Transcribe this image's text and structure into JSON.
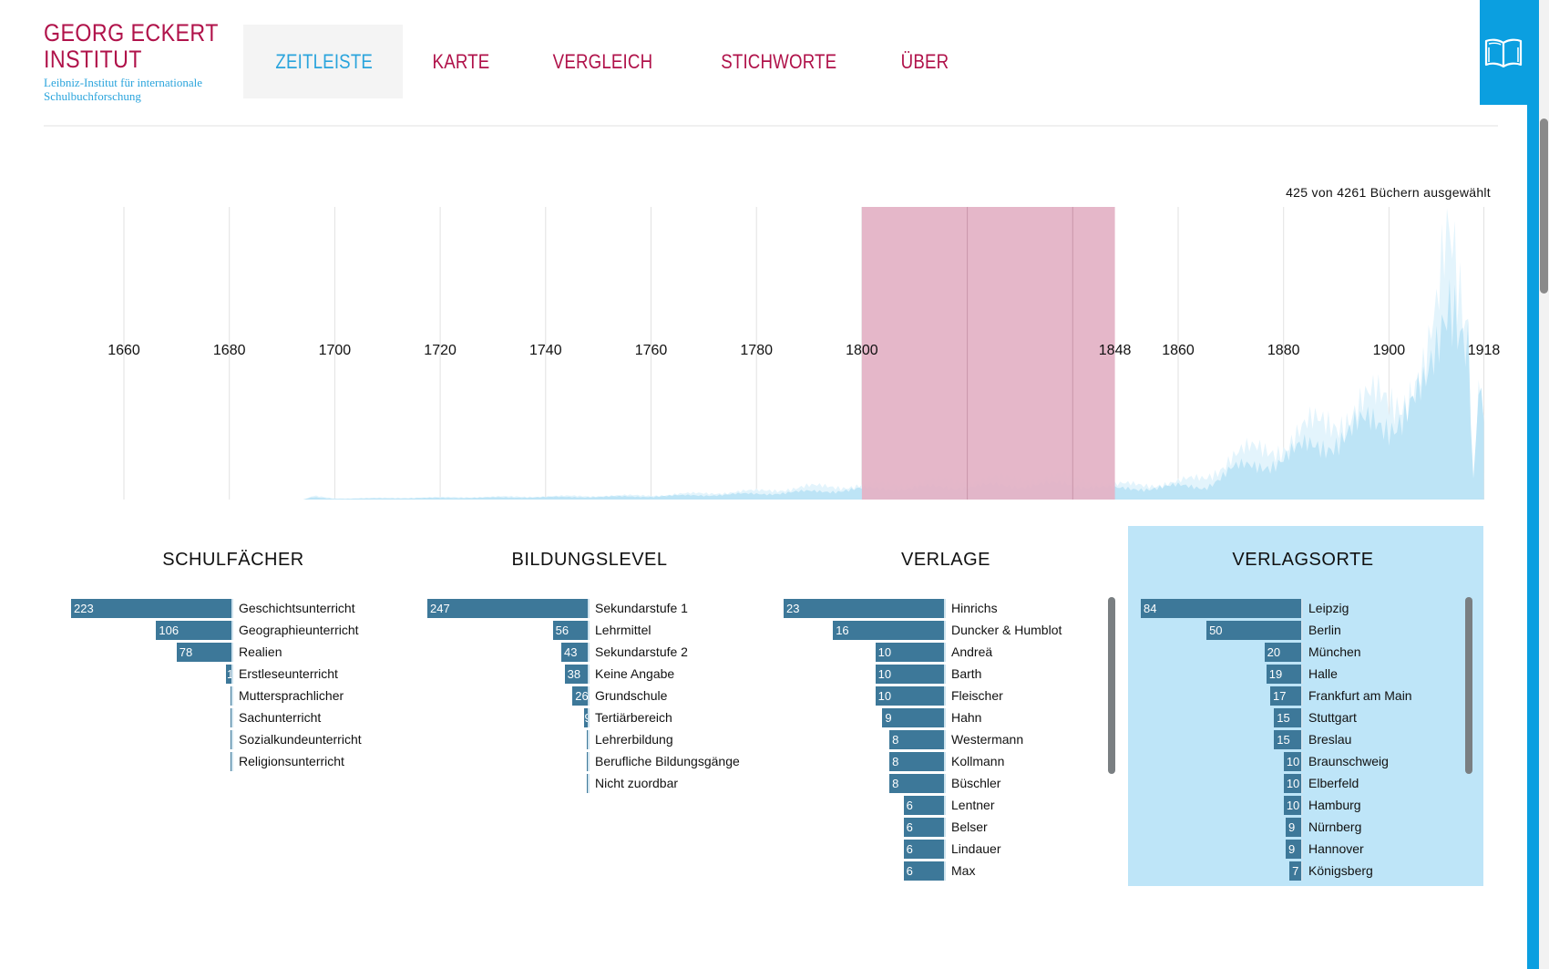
{
  "logo": {
    "line1": "GEORG ECKERT",
    "line2": "INSTITUT",
    "subtitle1": "Leibniz-Institut für internationale",
    "subtitle2": "Schulbuchforschung",
    "color": "#b0124a"
  },
  "nav": {
    "items": [
      {
        "label": "ZEITLEISTE",
        "active": true
      },
      {
        "label": "KARTE"
      },
      {
        "label": "VERGLEICH"
      },
      {
        "label": "STICHWORTE"
      },
      {
        "label": "ÜBER"
      }
    ]
  },
  "book_button": {
    "icon": "open-book-icon"
  },
  "timeline": {
    "selection_text": "425 von 4261 Büchern ausgewählt",
    "year_labels": [
      "1660",
      "1680",
      "1700",
      "1720",
      "1740",
      "1760",
      "1780",
      "1800",
      "1860",
      "1880",
      "1900",
      "1918"
    ],
    "selection": {
      "from": "1800",
      "to": "1848"
    },
    "selection_color": "#e4b3c6",
    "area_colors": {
      "total": "#e3f4fc",
      "selected": "#bde4f6"
    },
    "density_relative": [
      [
        1650,
        0,
        0
      ],
      [
        1694,
        0,
        0
      ],
      [
        1696,
        0.012,
        0.008
      ],
      [
        1700,
        0.004,
        0.003
      ],
      [
        1720,
        0.008,
        0.006
      ],
      [
        1760,
        0.015,
        0.012
      ],
      [
        1780,
        0.03,
        0.022
      ],
      [
        1790,
        0.045,
        0.03
      ],
      [
        1800,
        0.05,
        0.04
      ],
      [
        1820,
        0.07,
        0.05
      ],
      [
        1840,
        0.08,
        0.06
      ],
      [
        1848,
        0.05,
        0.04
      ],
      [
        1860,
        0.06,
        0.05
      ],
      [
        1865,
        0.08,
        0.05
      ],
      [
        1870,
        0.15,
        0.11
      ],
      [
        1880,
        0.2,
        0.16
      ],
      [
        1890,
        0.3,
        0.24
      ],
      [
        1900,
        0.36,
        0.31
      ],
      [
        1907,
        0.45,
        0.4
      ],
      [
        1909,
        0.6,
        0.55
      ],
      [
        1911,
        0.93,
        0.82
      ],
      [
        1912,
        1.0,
        0.9
      ],
      [
        1913,
        0.9,
        0.8
      ],
      [
        1915,
        0.72,
        0.62
      ],
      [
        1916,
        0.07,
        0.07
      ],
      [
        1917,
        0.4,
        0.38
      ],
      [
        1918,
        0.3,
        0.3
      ]
    ]
  },
  "panels": [
    {
      "title": "SCHULFÄCHER",
      "active": false,
      "scroll": false,
      "items": [
        {
          "label": "Geschichtsunterricht",
          "value": 223
        },
        {
          "label": "Geographieunterricht",
          "value": 106
        },
        {
          "label": "Realien",
          "value": 78
        },
        {
          "label": "Erstleseunterricht",
          "value": 10
        },
        {
          "label": "Muttersprachlicher",
          "value": 4
        },
        {
          "label": "Sachunterricht",
          "value": 3
        },
        {
          "label": "Sozialkundeunterricht",
          "value": 3
        },
        {
          "label": "Religionsunterricht",
          "value": 3
        }
      ]
    },
    {
      "title": "BILDUNGSLEVEL",
      "active": false,
      "scroll": false,
      "items": [
        {
          "label": "Sekundarstufe 1",
          "value": 247
        },
        {
          "label": "Lehrmittel",
          "value": 56
        },
        {
          "label": "Sekundarstufe 2",
          "value": 43
        },
        {
          "label": "Keine Angabe",
          "value": 38
        },
        {
          "label": "Grundschule",
          "value": 26
        },
        {
          "label": "Tertiärbereich",
          "value": 9
        },
        {
          "label": "Lehrerbildung",
          "value": 4
        },
        {
          "label": "Berufliche Bildungsgänge",
          "value": 3
        },
        {
          "label": "Nicht zuordbar",
          "value": 3
        }
      ]
    },
    {
      "title": "VERLAGE",
      "active": false,
      "scroll": true,
      "items": [
        {
          "label": "Hinrichs",
          "value": 23
        },
        {
          "label": "Duncker & Humblot",
          "value": 16
        },
        {
          "label": "Andreä",
          "value": 10
        },
        {
          "label": "Barth",
          "value": 10
        },
        {
          "label": "Fleischer",
          "value": 10
        },
        {
          "label": "Hahn",
          "value": 9
        },
        {
          "label": "Westermann",
          "value": 8
        },
        {
          "label": "Kollmann",
          "value": 8
        },
        {
          "label": "Büschler",
          "value": 8
        },
        {
          "label": "Lentner",
          "value": 6
        },
        {
          "label": "Belser",
          "value": 6
        },
        {
          "label": "Lindauer",
          "value": 6
        },
        {
          "label": "Max",
          "value": 6
        }
      ]
    },
    {
      "title": "VERLAGSORTE",
      "active": true,
      "scroll": true,
      "items": [
        {
          "label": "Leipzig",
          "value": 84
        },
        {
          "label": "Berlin",
          "value": 50
        },
        {
          "label": "München",
          "value": 20
        },
        {
          "label": "Halle",
          "value": 19
        },
        {
          "label": "Frankfurt am Main",
          "value": 17
        },
        {
          "label": "Stuttgart",
          "value": 15
        },
        {
          "label": "Breslau",
          "value": 15
        },
        {
          "label": "Braunschweig",
          "value": 10
        },
        {
          "label": "Elberfeld",
          "value": 10
        },
        {
          "label": "Hamburg",
          "value": 10
        },
        {
          "label": "Nürnberg",
          "value": 9
        },
        {
          "label": "Hannover",
          "value": 9
        },
        {
          "label": "Königsberg",
          "value": 7
        }
      ]
    }
  ]
}
